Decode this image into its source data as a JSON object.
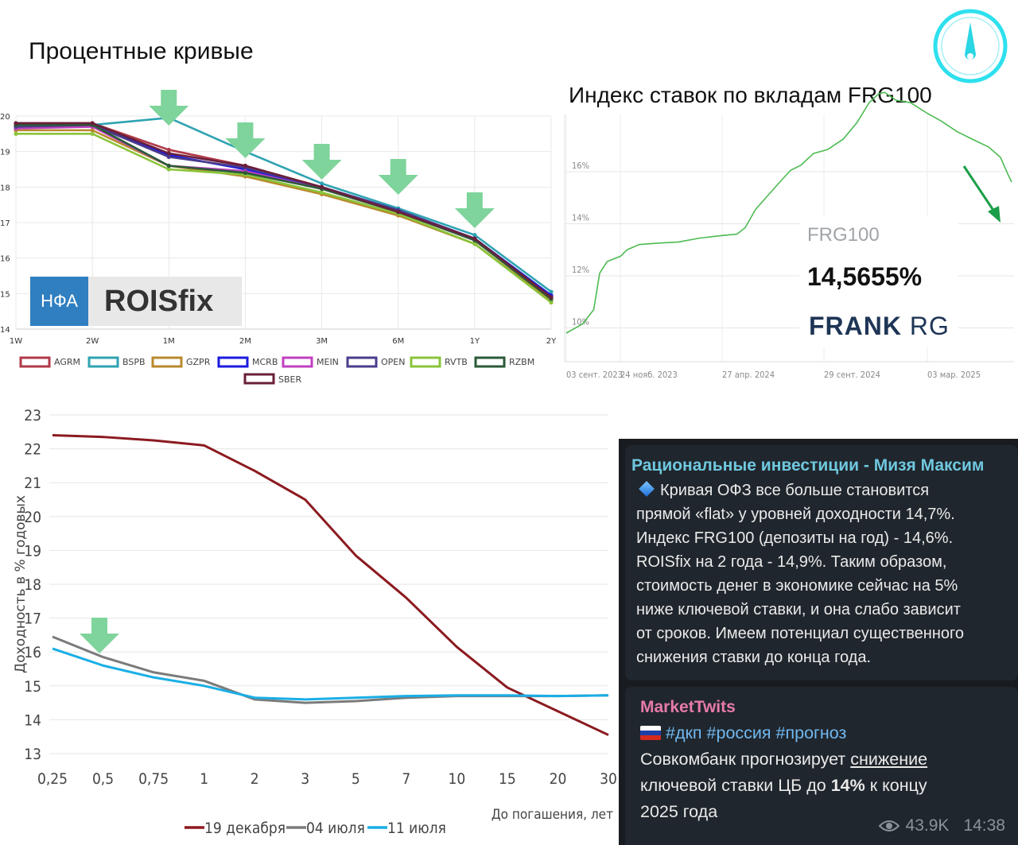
{
  "page_title": "Процентные кривые",
  "roisfix_badge": {
    "left": "НФА",
    "right": "ROISfix"
  },
  "frg_chart_title": "Индекс ставок по вкладам FRG100",
  "frg_card": {
    "label": "FRG100",
    "value": "14,5655%",
    "brand_bold": "FRANK",
    "brand_light": "RG"
  },
  "colors": {
    "arrow": "#7ed49b",
    "accent_green": "#1a9e48",
    "frg_line": "#4dbb52"
  },
  "chart_data": [
    {
      "type": "line",
      "title": "",
      "categories": [
        "1W",
        "2W",
        "1M",
        "2M",
        "3M",
        "6M",
        "1Y",
        "2Y"
      ],
      "y_ticks": [
        "14",
        "15",
        "16",
        "17",
        "18",
        "19",
        "20"
      ],
      "ylim": [
        14,
        20
      ],
      "grid": true,
      "legend_position": "bottom",
      "arrow_markers_at": [
        "1M",
        "2M",
        "3M",
        "6M",
        "1Y"
      ],
      "series": [
        {
          "name": "AGRM",
          "color": "#b03a48",
          "values": [
            19.8,
            19.8,
            19.05,
            18.6,
            18.0,
            17.3,
            16.55,
            14.9
          ]
        },
        {
          "name": "BSPB",
          "color": "#2fa3b2",
          "values": [
            19.65,
            19.75,
            19.95,
            19.0,
            18.1,
            17.4,
            16.65,
            15.05
          ]
        },
        {
          "name": "GZPR",
          "color": "#b8892c",
          "values": [
            19.6,
            19.6,
            18.6,
            18.3,
            17.8,
            17.2,
            16.4,
            14.8
          ]
        },
        {
          "name": "MCRB",
          "color": "#1a1ae0",
          "values": [
            19.7,
            19.75,
            18.9,
            18.5,
            18.0,
            17.35,
            16.55,
            14.95
          ]
        },
        {
          "name": "MEIN",
          "color": "#c040c0",
          "values": [
            19.65,
            19.7,
            18.6,
            18.45,
            17.95,
            17.3,
            16.5,
            14.9
          ]
        },
        {
          "name": "OPEN",
          "color": "#4a3c8c",
          "values": [
            19.7,
            19.75,
            18.85,
            18.55,
            18.0,
            17.35,
            16.55,
            14.9
          ]
        },
        {
          "name": "RVTB",
          "color": "#8ac43a",
          "values": [
            19.5,
            19.5,
            18.5,
            18.35,
            17.85,
            17.25,
            16.4,
            14.75
          ]
        },
        {
          "name": "RZBM",
          "color": "#2a5a38",
          "values": [
            19.75,
            19.75,
            18.6,
            18.4,
            17.95,
            17.3,
            16.5,
            14.85
          ]
        },
        {
          "name": "SBER",
          "color": "#6a1f3a",
          "values": [
            19.8,
            19.8,
            18.95,
            18.6,
            18.0,
            17.3,
            16.55,
            14.9
          ]
        }
      ]
    },
    {
      "type": "line",
      "title": "",
      "x_ticks": [
        "03 сент. 2023",
        "24 нояб. 2023",
        "27 апр. 2024",
        "29 сент. 2024",
        "03 мар. 2025"
      ],
      "y_ticks": [
        "10%",
        "12%",
        "14%",
        "16%"
      ],
      "ylim": [
        8.7,
        18.2
      ],
      "grid": true,
      "series": [
        {
          "name": "FRG100",
          "color": "#4dbb52",
          "x": [
            "2023-09-03",
            "2023-09-25",
            "2023-10-10",
            "2023-10-18",
            "2023-10-28",
            "2023-11-15",
            "2023-11-24",
            "2023-12-10",
            "2024-01-01",
            "2024-02-01",
            "2024-03-01",
            "2024-04-01",
            "2024-04-20",
            "2024-05-01",
            "2024-05-15",
            "2024-06-01",
            "2024-06-15",
            "2024-07-01",
            "2024-07-15",
            "2024-08-01",
            "2024-08-20",
            "2024-09-10",
            "2024-09-29",
            "2024-10-15",
            "2024-10-28",
            "2024-11-05",
            "2024-11-20",
            "2024-12-10",
            "2025-01-01",
            "2025-01-20",
            "2025-02-10",
            "2025-03-03",
            "2025-03-25",
            "2025-04-10",
            "2025-04-20",
            "2025-04-25"
          ],
          "values": [
            9.8,
            10.15,
            10.7,
            12.1,
            12.55,
            12.75,
            13.0,
            13.2,
            13.25,
            13.3,
            13.45,
            13.55,
            13.6,
            13.85,
            14.55,
            15.1,
            15.55,
            16.05,
            16.25,
            16.7,
            16.85,
            17.25,
            17.9,
            18.65,
            19.0,
            19.05,
            18.75,
            18.65,
            18.25,
            17.95,
            17.55,
            17.25,
            16.95,
            16.55,
            15.9,
            15.6
          ]
        }
      ]
    },
    {
      "type": "line",
      "title": "",
      "xlabel": "До погашения, лет",
      "ylabel": "Доходность в % годовых",
      "categories": [
        "0,25",
        "0,5",
        "0,75",
        "1",
        "2",
        "3",
        "5",
        "7",
        "10",
        "15",
        "20",
        "30"
      ],
      "y_ticks": [
        "13",
        "14",
        "15",
        "16",
        "17",
        "18",
        "19",
        "20",
        "21",
        "22",
        "23"
      ],
      "ylim": [
        13,
        23
      ],
      "legend_position": "bottom",
      "arrow_markers_at": [
        "0,5"
      ],
      "series": [
        {
          "name": "19 декабря",
          "color": "#8b1a1f",
          "values": [
            22.4,
            22.35,
            22.25,
            22.1,
            21.35,
            20.5,
            18.85,
            17.6,
            16.15,
            14.95,
            14.25,
            13.55
          ]
        },
        {
          "name": "04 июля",
          "color": "#7b7b7b",
          "values": [
            16.45,
            15.85,
            15.4,
            15.15,
            14.6,
            14.5,
            14.55,
            14.65,
            14.7,
            14.7,
            14.7,
            14.72
          ]
        },
        {
          "name": "11 июля",
          "color": "#1aaee6",
          "values": [
            16.1,
            15.6,
            15.25,
            15.0,
            14.65,
            14.6,
            14.65,
            14.7,
            14.72,
            14.72,
            14.7,
            14.72
          ]
        }
      ]
    }
  ],
  "telegram": {
    "msg1": {
      "author": "Рациональные инвестиции - Мизя Максим",
      "lines": [
        "Кривая ОФЗ все больше становится",
        "прямой «flat» у уровней доходности 14,7%.",
        "Индекс FRG100 (депозиты на год) - 14,6%.",
        "ROISfix на 2 года - 14,9%. Таким образом,",
        "стоимость денег в экономике сейчас на 5%",
        "ниже ключевой ставки, и она слабо зависит",
        "от сроков. Имеем потенциал существенного",
        "снижения ставки до конца года."
      ]
    },
    "msg2": {
      "author": "MarketTwits",
      "tags": "#дкп #россия #прогноз",
      "line1_pre": "Совкомбанк прогнозирует ",
      "line1_link": "снижение",
      "line2_pre": "ключевой ставки ЦБ до ",
      "line2_bold": "14%",
      "line2_post": " к концу",
      "line3": "2025 года",
      "views": "43.9K",
      "time": "14:38"
    }
  }
}
